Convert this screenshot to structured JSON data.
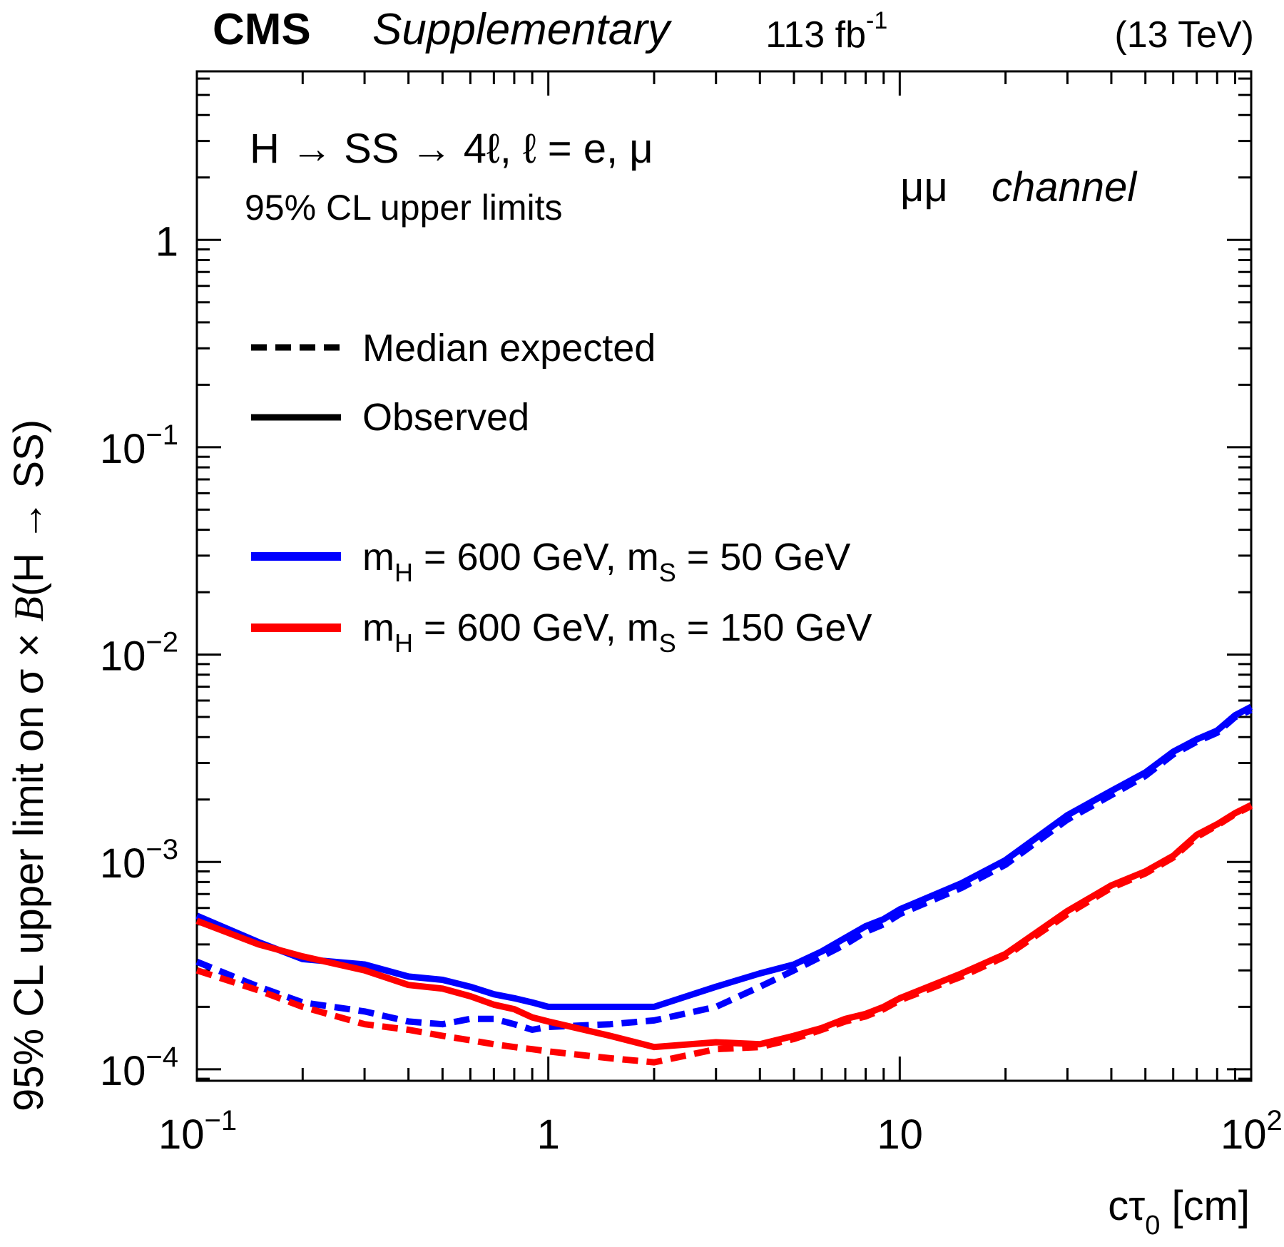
{
  "header": {
    "experiment": "CMS",
    "tag": "Supplementary",
    "lumi_prefix": "113 fb",
    "lumi_exp": "-1",
    "energy": "(13 TeV)"
  },
  "annotations": {
    "process": "H → SS → 4ℓ, ℓ = e, μ",
    "limit_text": "95% CL upper limits",
    "channel_prefix": "μμ",
    "channel_word": "channel"
  },
  "legend": {
    "expected": "Median expected",
    "observed": "Observed",
    "signal_1_prefix": "m",
    "signal_1_sub": "H",
    "signal_1_mid": " = 600 GeV, m",
    "signal_1_sub2": "S",
    "signal_1_suffix": " = 50 GeV",
    "signal_2_prefix": "m",
    "signal_2_sub": "H",
    "signal_2_mid": " = 600 GeV, m",
    "signal_2_sub2": "S",
    "signal_2_suffix": " = 150 GeV"
  },
  "axes": {
    "ylabel_part1": "95% CL upper limit on σ × ",
    "ylabel_part2": "B",
    "ylabel_part3": "(H → SS)",
    "xlabel_main": "cτ",
    "xlabel_sub": "0",
    "xlabel_unit": " [cm]",
    "x_ticks": [
      {
        "base": "10",
        "exp": "−1"
      },
      {
        "base": "1",
        "exp": ""
      },
      {
        "base": "10",
        "exp": ""
      },
      {
        "base": "10",
        "exp": "2"
      }
    ],
    "y_ticks": [
      {
        "base": "1",
        "exp": ""
      },
      {
        "base": "10",
        "exp": "−1"
      },
      {
        "base": "10",
        "exp": "−2"
      },
      {
        "base": "10",
        "exp": "−3"
      },
      {
        "base": "10",
        "exp": "−4"
      }
    ]
  },
  "colors": {
    "blue": "#0000ff",
    "red": "#ff0000",
    "black": "#000000"
  },
  "chart_data": {
    "type": "line",
    "title": "",
    "xlabel": "cτ0 [cm]",
    "ylabel": "95% CL upper limit on σ × B(H → SS)",
    "xscale": "log",
    "yscale": "log",
    "xlim": [
      0.1,
      100
    ],
    "ylim": [
      8.8e-05,
      6.5
    ],
    "x_tick_values": [
      0.1,
      1,
      10,
      100
    ],
    "y_tick_values": [
      1,
      0.1,
      0.01,
      0.001,
      0.0001
    ],
    "series": [
      {
        "name": "mH = 600 GeV, mS = 50 GeV (Observed)",
        "color": "blue",
        "style": "solid",
        "x": [
          0.1,
          0.15,
          0.2,
          0.3,
          0.4,
          0.5,
          0.6,
          0.7,
          0.8,
          0.9,
          1,
          1.5,
          2,
          3,
          4,
          5,
          6,
          7,
          8,
          9,
          10,
          15,
          20,
          30,
          40,
          50,
          60,
          70,
          80,
          90,
          100
        ],
        "y": [
          0.00055,
          0.00041,
          0.00034,
          0.00032,
          0.00028,
          0.00027,
          0.00025,
          0.00023,
          0.00022,
          0.00021,
          0.0002,
          0.0002,
          0.0002,
          0.00025,
          0.00029,
          0.00032,
          0.00037,
          0.00043,
          0.00049,
          0.00053,
          0.00059,
          0.00079,
          0.00102,
          0.00168,
          0.0022,
          0.0027,
          0.0034,
          0.0039,
          0.0043,
          0.0051,
          0.0056
        ]
      },
      {
        "name": "mH = 600 GeV, mS = 50 GeV (Median expected)",
        "color": "blue",
        "style": "dashed",
        "x": [
          0.1,
          0.15,
          0.2,
          0.3,
          0.4,
          0.5,
          0.6,
          0.7,
          0.8,
          0.9,
          1,
          1.5,
          2,
          3,
          4,
          5,
          6,
          7,
          8,
          9,
          10,
          15,
          20,
          30,
          40,
          50,
          60,
          70,
          80,
          90,
          100
        ],
        "y": [
          0.00033,
          0.00025,
          0.00021,
          0.00019,
          0.00017,
          0.000165,
          0.000175,
          0.000175,
          0.000165,
          0.000155,
          0.00016,
          0.000165,
          0.000172,
          0.0002,
          0.00025,
          0.0003,
          0.00035,
          0.0004,
          0.00046,
          0.0005,
          0.00056,
          0.00075,
          0.00097,
          0.0016,
          0.0021,
          0.0026,
          0.0033,
          0.0038,
          0.0042,
          0.005,
          0.0054
        ]
      },
      {
        "name": "mH = 600 GeV, mS = 150 GeV (Observed)",
        "color": "red",
        "style": "solid",
        "x": [
          0.1,
          0.15,
          0.2,
          0.3,
          0.4,
          0.5,
          0.6,
          0.7,
          0.8,
          0.9,
          1,
          1.5,
          2,
          3,
          4,
          5,
          6,
          7,
          8,
          9,
          10,
          15,
          20,
          30,
          40,
          50,
          60,
          70,
          80,
          90,
          100
        ],
        "y": [
          0.00052,
          0.0004,
          0.00035,
          0.0003,
          0.000255,
          0.000245,
          0.000225,
          0.000205,
          0.000195,
          0.000178,
          0.00017,
          0.000145,
          0.000128,
          0.000135,
          0.000132,
          0.000145,
          0.000158,
          0.000175,
          0.000185,
          0.0002,
          0.00022,
          0.00029,
          0.00036,
          0.00058,
          0.00077,
          0.0009,
          0.00107,
          0.00135,
          0.00152,
          0.00172,
          0.00188
        ]
      },
      {
        "name": "mH = 600 GeV, mS = 150 GeV (Median expected)",
        "color": "red",
        "style": "dashed",
        "x": [
          0.1,
          0.15,
          0.2,
          0.3,
          0.4,
          0.5,
          0.6,
          0.7,
          0.8,
          0.9,
          1,
          1.5,
          2,
          3,
          4,
          5,
          6,
          7,
          8,
          9,
          10,
          15,
          20,
          30,
          40,
          50,
          60,
          70,
          80,
          90,
          100
        ],
        "y": [
          0.0003,
          0.00024,
          0.0002,
          0.000165,
          0.000155,
          0.000145,
          0.000138,
          0.000132,
          0.000128,
          0.000125,
          0.000122,
          0.000113,
          0.000108,
          0.000125,
          0.000128,
          0.00014,
          0.000155,
          0.00017,
          0.00018,
          0.000195,
          0.000215,
          0.00028,
          0.00035,
          0.00056,
          0.00075,
          0.00088,
          0.00105,
          0.00132,
          0.0015,
          0.0017,
          0.00186
        ]
      }
    ]
  }
}
